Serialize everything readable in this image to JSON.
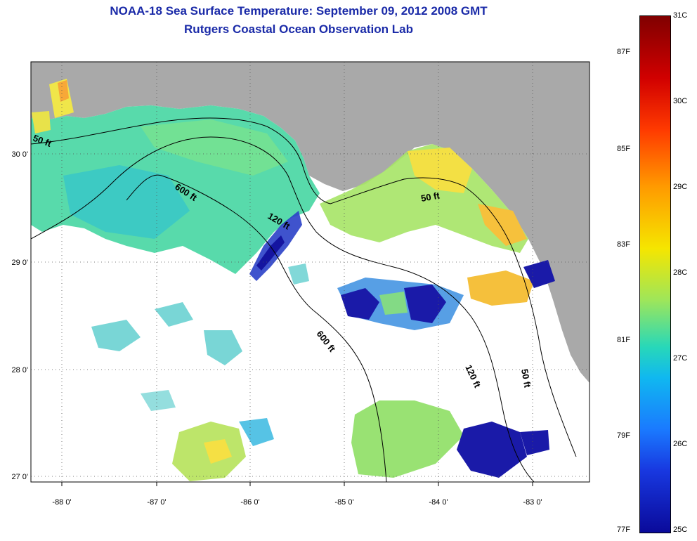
{
  "header": {
    "title": "NOAA-18 Sea Surface Temperature:  September 09, 2012 2008 GMT",
    "subtitle": "Rutgers Coastal Ocean Observation Lab"
  },
  "axes": {
    "lon_labels": [
      "-88 0'",
      "-87 0'",
      "-86 0'",
      "-85 0'",
      "-84 0'",
      "-83 0'"
    ],
    "lat_labels": [
      "30 0'",
      "29 0'",
      "28 0'",
      "27 0'"
    ]
  },
  "contours": {
    "label_50": "50 ft",
    "label_120": "120 ft",
    "label_600": "600 ft"
  },
  "colorbar": {
    "celsius": [
      "31C",
      "30C",
      "29C",
      "28C",
      "27C",
      "26C",
      "25C"
    ],
    "fahrenheit": [
      "87F",
      "85F",
      "83F",
      "81F",
      "79F",
      "77F"
    ]
  },
  "colors": {
    "land": "#a9a9a9",
    "title": "#1a2aa8"
  }
}
